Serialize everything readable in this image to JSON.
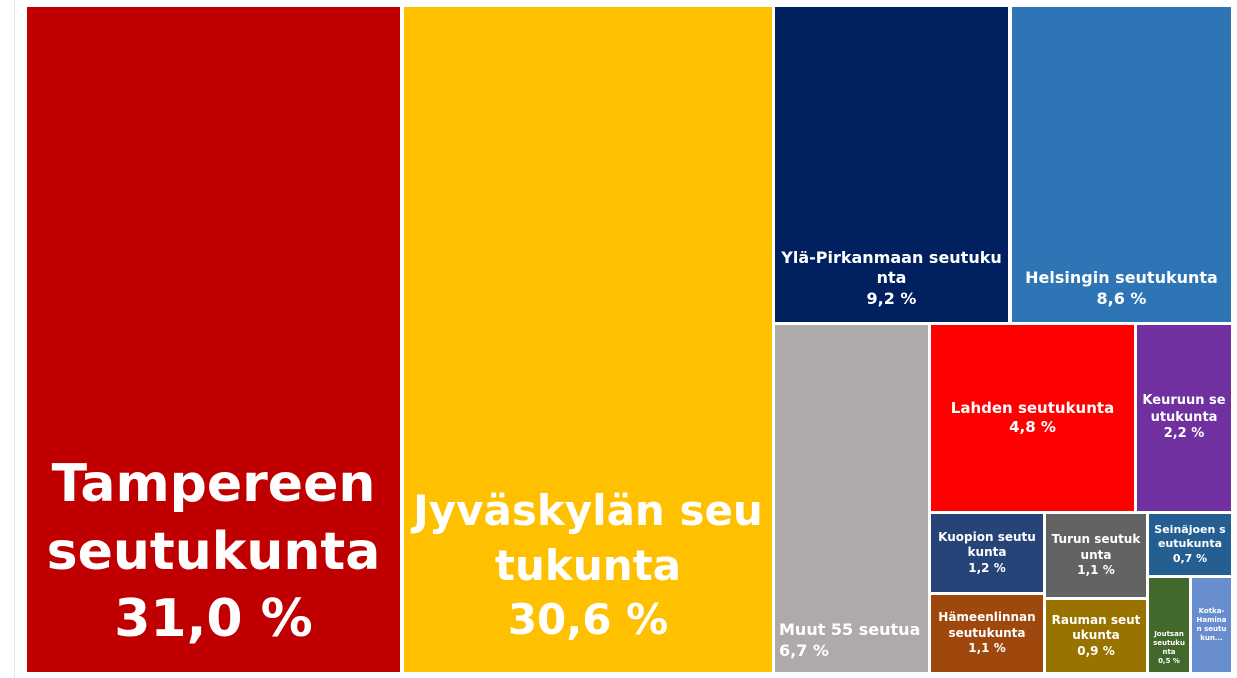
{
  "chart_data": {
    "type": "treemap",
    "categories": [
      "Tampereen seutukunta",
      "Jyväskylän seutukunta",
      "Ylä-Pirkanmaan seutukunta",
      "Helsingin seutukunta",
      "Muut 55 seutua",
      "Lahden seutukunta",
      "Keuruun seutukunta",
      "Kuopion seutukunta",
      "Turun seutukunta",
      "Hämeenlinnan seutukunta",
      "Rauman seutukunta",
      "Seinäjoen seutukunta",
      "Joutsan seutukunta",
      "Kotka-Haminan seutukun..."
    ],
    "values": [
      31.0,
      30.6,
      9.2,
      8.6,
      6.7,
      4.8,
      2.2,
      1.2,
      1.1,
      1.1,
      0.9,
      0.7,
      0.5,
      0.5
    ],
    "value_labels": [
      "31,0 %",
      "30,6 %",
      "9,2 %",
      "8,6 %",
      "6,7 %",
      "4,8 %",
      "2,2 %",
      "1,2 %",
      "1,1 %",
      "1,1 %",
      "0,9 %",
      "0,7 %",
      "0,5 %",
      null
    ],
    "colors": [
      "#c00000",
      "#ffc000",
      "#002060",
      "#2e75b6",
      "#aeaaaa",
      "#ff0000",
      "#7030a0",
      "#264478",
      "#636363",
      "#9e480e",
      "#997300",
      "#255e91",
      "#43682b",
      "#698ed0"
    ]
  }
}
